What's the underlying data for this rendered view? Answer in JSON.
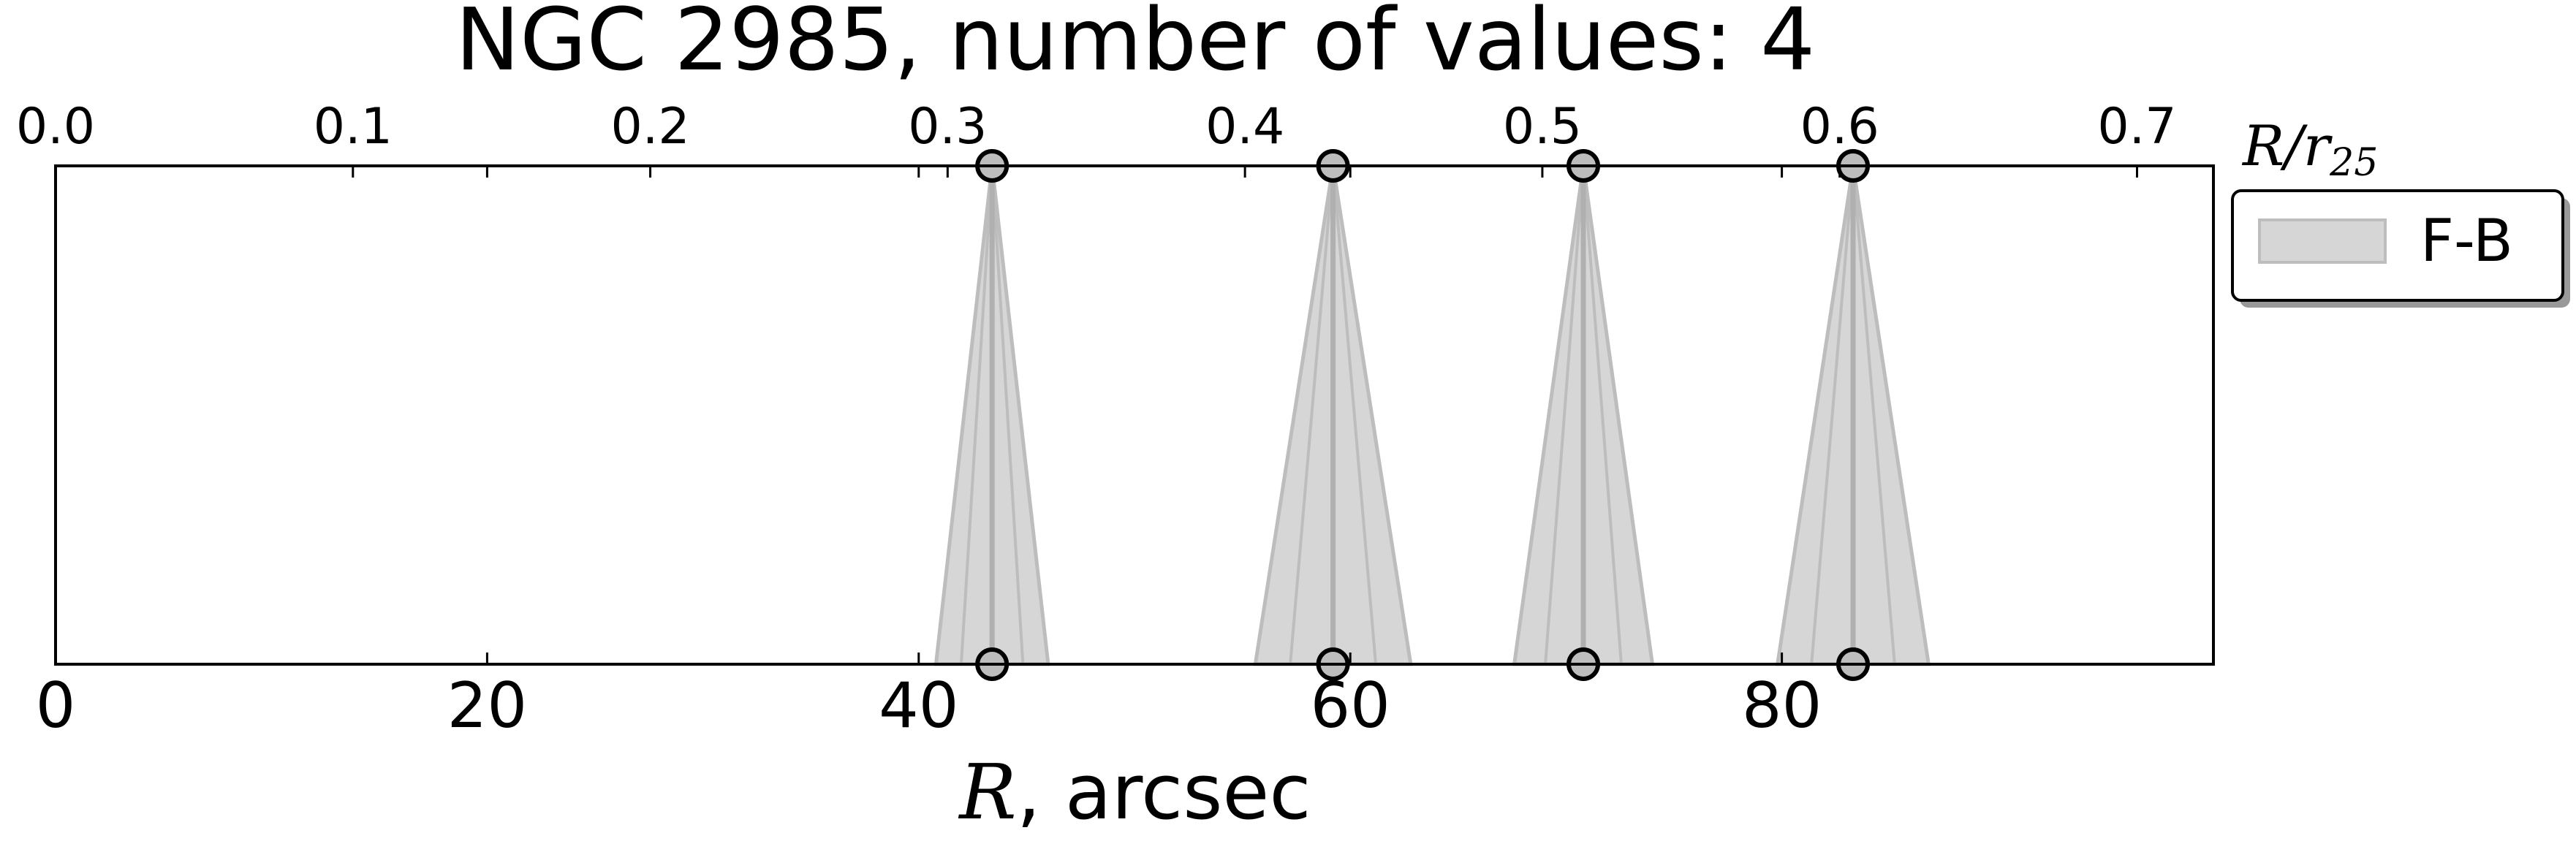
{
  "chart_data": {
    "type": "area",
    "title": "NGC 2985, number of values: 4",
    "xlabel_symbol": "R",
    "xlabel_rest": ", arcsec",
    "xlim": [
      0,
      100
    ],
    "xticks": [
      0,
      20,
      40,
      60,
      80
    ],
    "xtick_labels": [
      "0",
      "20",
      "40",
      "60",
      "80"
    ],
    "top_axis": {
      "label_symbol": "R/r",
      "label_subscript": "25",
      "ticks": [
        0.0,
        0.1,
        0.2,
        0.3,
        0.4,
        0.5,
        0.6,
        0.7
      ],
      "tick_labels": [
        "0.0",
        "0.1",
        "0.2",
        "0.3",
        "0.4",
        "0.5",
        "0.6",
        "0.7"
      ],
      "arcsec_per_unit": 137.8
    },
    "series": [
      {
        "name": "F-B",
        "color": "#d6d6d6",
        "line_color": "#bdbdbd",
        "values": [
          {
            "x": 43.4,
            "spread": 2.6
          },
          {
            "x": 59.2,
            "spread": 3.6
          },
          {
            "x": 70.8,
            "spread": 3.2
          },
          {
            "x": 83.3,
            "spread": 3.5
          }
        ]
      }
    ],
    "legend_position": "upper-right-outside",
    "grid": false
  }
}
